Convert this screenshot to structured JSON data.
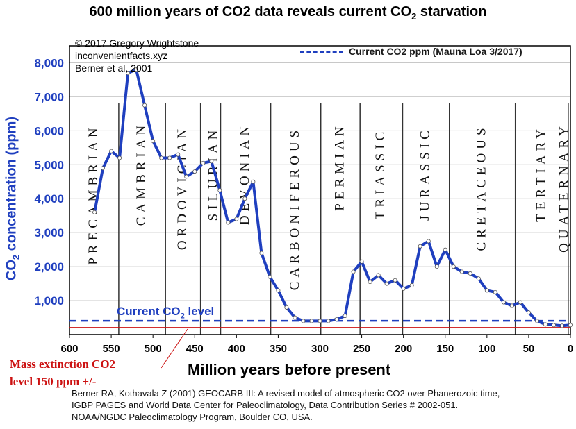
{
  "title": {
    "main": "600 million years of CO2 data reveals current CO",
    "sub": "2",
    "end": " starvation"
  },
  "credits": [
    "© 2017 Gregory Wrightstone",
    "inconvenientfacts.xyz",
    "Berner et al, 2001"
  ],
  "legend": {
    "label": "Current CO2 ppm (Mauna Loa 3/2017)"
  },
  "current_level_label": {
    "main": "Current CO",
    "sub": "2",
    "end": " level"
  },
  "annotation": {
    "line1": "Mass extinction CO2",
    "line2": "level 150 ppm +/-"
  },
  "citation": [
    "Berner RA, Kothavala Z (2001) GEOCARB III: A revised model of atmospheric CO2 over Phanerozoic time,",
    "IGBP PAGES and World Data Center for Paleoclimatology, Data Contribution Series # 2002-051.",
    "NOAA/NGDC Paleoclimatology Program, Boulder CO, USA."
  ],
  "colors": {
    "series": "#1f3fbf",
    "axis_text": "#1f3fbf",
    "extinction": "#cc1111",
    "period_divider": "#333333"
  },
  "chart_data": {
    "type": "line",
    "title": "600 million years of CO2 data reveals current CO2 starvation",
    "xlabel": "Million years before present",
    "ylabel": {
      "main": "CO",
      "sub": "2",
      "end": " concentration (ppm)"
    },
    "xlim": [
      600,
      0
    ],
    "ylim": [
      0,
      8500
    ],
    "x_ticks": [
      600,
      550,
      500,
      450,
      400,
      350,
      300,
      250,
      200,
      150,
      100,
      50,
      0
    ],
    "y_ticks": [
      1000,
      2000,
      3000,
      4000,
      5000,
      6000,
      7000,
      8000
    ],
    "y_tick_labels": [
      "1,000",
      "2,000",
      "3,000",
      "4,000",
      "5,000",
      "6,000",
      "7,000",
      "8,000"
    ],
    "grid": true,
    "series": [
      {
        "name": "CO2 ppm (Berner et al, 2001)",
        "x": [
          570,
          560,
          550,
          540,
          530,
          520,
          510,
          500,
          490,
          480,
          470,
          460,
          450,
          440,
          430,
          420,
          410,
          400,
          390,
          380,
          370,
          360,
          350,
          340,
          330,
          320,
          310,
          300,
          290,
          280,
          270,
          260,
          250,
          240,
          230,
          220,
          210,
          200,
          190,
          180,
          170,
          160,
          150,
          140,
          130,
          120,
          110,
          100,
          90,
          80,
          70,
          60,
          50,
          40,
          30,
          20,
          10,
          0
        ],
        "y": [
          3600,
          4900,
          5400,
          5200,
          7700,
          7800,
          6750,
          5700,
          5200,
          5200,
          5300,
          4650,
          4800,
          5050,
          5100,
          4250,
          3300,
          3400,
          4000,
          4500,
          2400,
          1700,
          1300,
          800,
          500,
          400,
          400,
          400,
          400,
          450,
          550,
          1850,
          2150,
          1550,
          1750,
          1500,
          1600,
          1350,
          1450,
          2600,
          2750,
          2000,
          2500,
          2000,
          1850,
          1800,
          1650,
          1300,
          1250,
          950,
          850,
          950,
          650,
          400,
          300,
          280,
          260,
          280
        ]
      },
      {
        "name": "Current CO2 ppm (Mauna Loa 3/2017)",
        "style": "dashed",
        "y_constant": 405
      },
      {
        "name": "Mass extinction CO2 level",
        "style": "solid-red",
        "y_constant": 150
      }
    ],
    "periods": [
      {
        "name": "PRECAMBRIAN",
        "start": 600,
        "end": 541
      },
      {
        "name": "CAMBRIAN",
        "start": 541,
        "end": 485
      },
      {
        "name": "ORDOVICIAN",
        "start": 485,
        "end": 443
      },
      {
        "name": "SILURIAN",
        "start": 443,
        "end": 419
      },
      {
        "name": "DEVONIAN",
        "start": 419,
        "end": 359
      },
      {
        "name": "CARBONIFEROUS",
        "start": 359,
        "end": 299
      },
      {
        "name": "PERMIAN",
        "start": 299,
        "end": 252
      },
      {
        "name": "TRIASSIC",
        "start": 252,
        "end": 201
      },
      {
        "name": "JURASSIC",
        "start": 201,
        "end": 145
      },
      {
        "name": "CRETACEOUS",
        "start": 145,
        "end": 66
      },
      {
        "name": "TERTIARY",
        "start": 66,
        "end": 2.6
      },
      {
        "name": "QUATERNARY",
        "start": 2.6,
        "end": 0
      }
    ]
  }
}
